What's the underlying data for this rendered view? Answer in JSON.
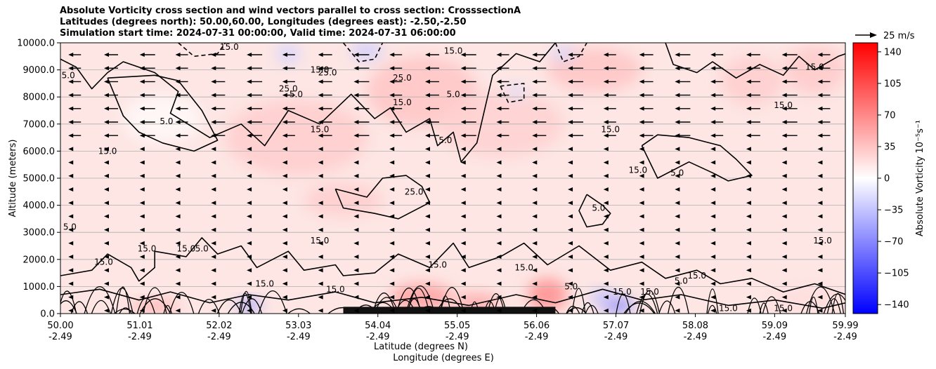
{
  "chart_data": {
    "type": "heatmap",
    "title_lines": [
      "Absolute Vorticity cross section and wind vectors parallel to cross section: CrosssectionA",
      "Latitudes (degrees north): 50.00,60.00, Longitudes (degrees east): -2.50,-2.50",
      "Simulation start time: 2024-07-31 00:00:00, Valid time: 2024-07-31 06:00:00"
    ],
    "ylabel": "Altitude (meters)",
    "xlabel_1": "Latitude (degrees N)",
    "xlabel_2": "Longitude (degrees E)",
    "ylim": [
      0,
      10000
    ],
    "yticks": [
      "0.0",
      "1000.0",
      "2000.0",
      "3000.0",
      "4000.0",
      "5000.0",
      "6000.0",
      "7000.0",
      "8000.0",
      "9000.0",
      "10000.0"
    ],
    "xticks": [
      {
        "lat": "50.00",
        "lon": "-2.49"
      },
      {
        "lat": "51.01",
        "lon": "-2.49"
      },
      {
        "lat": "52.02",
        "lon": "-2.49"
      },
      {
        "lat": "53.03",
        "lon": "-2.49"
      },
      {
        "lat": "54.04",
        "lon": "-2.49"
      },
      {
        "lat": "55.05",
        "lon": "-2.49"
      },
      {
        "lat": "56.06",
        "lon": "-2.49"
      },
      {
        "lat": "57.07",
        "lon": "-2.49"
      },
      {
        "lat": "58.08",
        "lon": "-2.49"
      },
      {
        "lat": "59.09",
        "lon": "-2.49"
      },
      {
        "lat": "59.99",
        "lon": "-2.49"
      }
    ],
    "horizontal_grid": true,
    "colorbar": {
      "label": "Absolute Vorticity 10⁻⁵s⁻¹",
      "ticks": [
        "140",
        "105",
        "70",
        "35",
        "0",
        "−35",
        "−70",
        "−105",
        "−140"
      ],
      "range": [
        -150,
        150
      ],
      "colors": {
        "high": "#ff0000",
        "mid": "#ffffff",
        "low": "#0000ff"
      }
    },
    "quiver_key": {
      "label": "25 m/s"
    },
    "wind_direction": "toward lower latitude (arrows point left)",
    "contour_levels": [
      "5.0",
      "15.0",
      "25.0"
    ],
    "contour_labels": [
      {
        "text": "5.0",
        "lat": 50.1,
        "alt": 8800
      },
      {
        "text": "15.0",
        "lat": 50.6,
        "alt": 6000
      },
      {
        "text": "5.0",
        "lat": 51.35,
        "alt": 7100
      },
      {
        "text": "15.0",
        "lat": 52.15,
        "alt": 9850
      },
      {
        "text": "5.0",
        "lat": 53.0,
        "alt": 8100
      },
      {
        "text": "25.0",
        "lat": 52.9,
        "alt": 8300
      },
      {
        "text": "15.0",
        "lat": 53.3,
        "alt": 6800
      },
      {
        "text": "15.0",
        "lat": 53.3,
        "alt": 9000
      },
      {
        "text": "25.0",
        "lat": 53.4,
        "alt": 8900
      },
      {
        "text": "15.0",
        "lat": 54.35,
        "alt": 7800
      },
      {
        "text": "25.0",
        "lat": 54.35,
        "alt": 8700
      },
      {
        "text": "25.0",
        "lat": 54.5,
        "alt": 4500
      },
      {
        "text": "5.0",
        "lat": 54.9,
        "alt": 6400
      },
      {
        "text": "15.0",
        "lat": 55.0,
        "alt": 9700
      },
      {
        "text": "5.0",
        "lat": 55.0,
        "alt": 8100
      },
      {
        "text": "15.0",
        "lat": 57.0,
        "alt": 6800
      },
      {
        "text": "15.0",
        "lat": 57.35,
        "alt": 5300
      },
      {
        "text": "5.0",
        "lat": 57.85,
        "alt": 5200
      },
      {
        "text": "5.0",
        "lat": 56.85,
        "alt": 3900
      },
      {
        "text": "15.0",
        "lat": 59.2,
        "alt": 7700
      },
      {
        "text": "15.0",
        "lat": 59.6,
        "alt": 9100
      },
      {
        "text": "15.0",
        "lat": 59.7,
        "alt": 2700
      },
      {
        "text": "15.0",
        "lat": 53.3,
        "alt": 2700
      },
      {
        "text": "15.0",
        "lat": 51.1,
        "alt": 2400
      },
      {
        "text": "15.0",
        "lat": 51.6,
        "alt": 2400
      },
      {
        "text": "5.0",
        "lat": 51.8,
        "alt": 2400
      },
      {
        "text": "5.0",
        "lat": 50.12,
        "alt": 3200
      },
      {
        "text": "15.0",
        "lat": 50.55,
        "alt": 1900
      },
      {
        "text": "15.0",
        "lat": 52.6,
        "alt": 1100
      },
      {
        "text": "5.0",
        "lat": 57.9,
        "alt": 1200
      },
      {
        "text": "15.0",
        "lat": 58.1,
        "alt": 1400
      },
      {
        "text": "15.0",
        "lat": 57.15,
        "alt": 800
      },
      {
        "text": "15.0",
        "lat": 57.5,
        "alt": 800
      },
      {
        "text": "15.0",
        "lat": 55.9,
        "alt": 1700
      },
      {
        "text": "5.0",
        "lat": 56.5,
        "alt": 1000
      },
      {
        "text": "15.0",
        "lat": 54.8,
        "alt": 1800
      },
      {
        "text": "15.0",
        "lat": 53.5,
        "alt": 900
      },
      {
        "text": "15.0",
        "lat": 58.5,
        "alt": 200
      },
      {
        "text": "15.0",
        "lat": 59.2,
        "alt": 200
      }
    ],
    "contour_lines": [
      {
        "dash": false,
        "pts": [
          [
            50.0,
            1400
          ],
          [
            50.4,
            1600
          ],
          [
            50.6,
            2200
          ],
          [
            50.9,
            1700
          ],
          [
            51.0,
            1200
          ],
          [
            51.2,
            1700
          ],
          [
            51.2,
            2300
          ],
          [
            51.6,
            2100
          ],
          [
            51.8,
            2800
          ],
          [
            52.0,
            2200
          ],
          [
            52.3,
            2500
          ],
          [
            52.5,
            1700
          ],
          [
            52.9,
            2300
          ],
          [
            53.1,
            1600
          ],
          [
            53.5,
            1800
          ],
          [
            53.6,
            1400
          ],
          [
            54.0,
            1500
          ],
          [
            54.3,
            2200
          ],
          [
            54.7,
            1700
          ],
          [
            55.0,
            2600
          ],
          [
            55.2,
            1700
          ],
          [
            55.6,
            2100
          ],
          [
            55.9,
            2600
          ],
          [
            56.2,
            1800
          ],
          [
            56.6,
            2500
          ],
          [
            57.0,
            1600
          ],
          [
            57.4,
            1900
          ],
          [
            57.7,
            1300
          ],
          [
            58.1,
            1600
          ],
          [
            58.4,
            1100
          ],
          [
            58.8,
            1300
          ],
          [
            59.2,
            800
          ],
          [
            59.6,
            1100
          ],
          [
            60.0,
            700
          ]
        ]
      },
      {
        "dash": false,
        "pts": [
          [
            50.0,
            700
          ],
          [
            50.5,
            900
          ],
          [
            51.0,
            500
          ],
          [
            51.4,
            800
          ],
          [
            51.9,
            400
          ],
          [
            52.4,
            700
          ],
          [
            52.9,
            500
          ],
          [
            53.5,
            800
          ],
          [
            54.0,
            400
          ],
          [
            54.6,
            600
          ],
          [
            55.2,
            300
          ],
          [
            55.8,
            700
          ],
          [
            56.3,
            400
          ],
          [
            56.9,
            900
          ],
          [
            57.4,
            500
          ],
          [
            57.9,
            700
          ],
          [
            58.5,
            300
          ],
          [
            59.1,
            500
          ],
          [
            59.7,
            200
          ],
          [
            60.0,
            400
          ]
        ]
      },
      {
        "dash": false,
        "pts": [
          [
            50.0,
            9400
          ],
          [
            50.2,
            9100
          ],
          [
            50.4,
            8300
          ],
          [
            50.6,
            8900
          ],
          [
            50.8,
            9300
          ],
          [
            51.2,
            8900
          ],
          [
            51.5,
            8200
          ],
          [
            51.4,
            7400
          ],
          [
            51.9,
            6500
          ],
          [
            52.3,
            7000
          ],
          [
            52.6,
            6200
          ],
          [
            52.9,
            7500
          ],
          [
            53.3,
            7000
          ],
          [
            53.7,
            8100
          ],
          [
            54.0,
            7200
          ],
          [
            54.2,
            7600
          ],
          [
            54.4,
            6700
          ],
          [
            54.7,
            7200
          ],
          [
            54.8,
            6200
          ],
          [
            55.0,
            6700
          ],
          [
            55.1,
            5600
          ],
          [
            55.3,
            6300
          ],
          [
            55.5,
            8800
          ],
          [
            55.8,
            9600
          ],
          [
            56.1,
            9300
          ],
          [
            56.3,
            10000
          ]
        ]
      },
      {
        "dash": false,
        "pts": [
          [
            50.6,
            8700
          ],
          [
            50.8,
            7300
          ],
          [
            51.0,
            6700
          ],
          [
            51.3,
            6300
          ],
          [
            51.7,
            6000
          ],
          [
            52.0,
            6400
          ],
          [
            51.8,
            7500
          ],
          [
            51.5,
            8600
          ],
          [
            51.2,
            8800
          ],
          [
            50.6,
            8700
          ]
        ]
      },
      {
        "dash": false,
        "pts": [
          [
            53.5,
            4600
          ],
          [
            53.9,
            4300
          ],
          [
            54.1,
            5000
          ],
          [
            54.4,
            5100
          ],
          [
            54.6,
            4700
          ],
          [
            54.7,
            4100
          ],
          [
            54.3,
            3500
          ],
          [
            54.0,
            3700
          ],
          [
            53.6,
            3900
          ],
          [
            53.5,
            4600
          ]
        ]
      },
      {
        "dash": false,
        "pts": [
          [
            56.7,
            4400
          ],
          [
            56.9,
            4000
          ],
          [
            57.0,
            3700
          ],
          [
            56.9,
            3300
          ],
          [
            56.7,
            3200
          ],
          [
            56.6,
            3800
          ],
          [
            56.7,
            4400
          ]
        ]
      },
      {
        "dash": false,
        "pts": [
          [
            57.4,
            6200
          ],
          [
            57.6,
            5000
          ],
          [
            58.0,
            5600
          ],
          [
            58.3,
            5200
          ],
          [
            58.5,
            4900
          ],
          [
            58.8,
            5100
          ],
          [
            58.6,
            5700
          ],
          [
            58.4,
            6200
          ],
          [
            58.0,
            6500
          ],
          [
            57.6,
            6600
          ],
          [
            57.4,
            6200
          ]
        ]
      },
      {
        "dash": false,
        "pts": [
          [
            57.7,
            10000
          ],
          [
            57.8,
            9200
          ],
          [
            58.1,
            8900
          ],
          [
            58.3,
            9300
          ],
          [
            58.6,
            8700
          ],
          [
            58.9,
            9200
          ],
          [
            59.2,
            8800
          ],
          [
            59.4,
            9500
          ],
          [
            59.6,
            9000
          ],
          [
            59.9,
            9500
          ],
          [
            60.0,
            9600
          ]
        ]
      },
      {
        "dash": true,
        "pts": [
          [
            51.5,
            10000
          ],
          [
            51.7,
            9500
          ],
          [
            52.0,
            9600
          ],
          [
            52.1,
            10000
          ]
        ]
      },
      {
        "dash": true,
        "pts": [
          [
            53.6,
            10000
          ],
          [
            53.8,
            9300
          ],
          [
            54.0,
            9400
          ],
          [
            54.1,
            10000
          ]
        ]
      },
      {
        "dash": true,
        "pts": [
          [
            56.3,
            10000
          ],
          [
            56.4,
            9300
          ],
          [
            56.6,
            9500
          ],
          [
            56.7,
            10000
          ]
        ]
      },
      {
        "dash": true,
        "pts": [
          [
            55.6,
            8400
          ],
          [
            55.7,
            7800
          ],
          [
            55.9,
            7900
          ],
          [
            55.9,
            8500
          ],
          [
            55.6,
            8400
          ]
        ]
      }
    ],
    "field_patches": [
      {
        "lat": 53.0,
        "alt": 6500,
        "value": 30,
        "r_lat": 0.9,
        "r_alt": 1400
      },
      {
        "lat": 54.6,
        "alt": 8200,
        "value": 35,
        "r_lat": 0.7,
        "r_alt": 1300
      },
      {
        "lat": 55.6,
        "alt": 7000,
        "value": 28,
        "r_lat": 0.8,
        "r_alt": 1200
      },
      {
        "lat": 53.6,
        "alt": 4200,
        "value": 30,
        "r_lat": 0.5,
        "r_alt": 600
      },
      {
        "lat": 56.8,
        "alt": 9000,
        "value": 35,
        "r_lat": 0.6,
        "r_alt": 800
      },
      {
        "lat": 59.6,
        "alt": 9000,
        "value": 32,
        "r_lat": 0.4,
        "r_alt": 900
      },
      {
        "lat": 58.8,
        "alt": 8600,
        "value": 30,
        "r_lat": 0.4,
        "r_alt": 900
      },
      {
        "lat": 51.3,
        "alt": 7200,
        "value": 3,
        "r_lat": 0.5,
        "r_alt": 900
      },
      {
        "lat": 52.9,
        "alt": 9600,
        "value": -25,
        "r_lat": 0.15,
        "r_alt": 400
      },
      {
        "lat": 53.9,
        "alt": 9700,
        "value": -30,
        "r_lat": 0.2,
        "r_alt": 350
      },
      {
        "lat": 56.4,
        "alt": 9600,
        "value": -25,
        "r_lat": 0.15,
        "r_alt": 300
      },
      {
        "lat": 55.8,
        "alt": 8200,
        "value": -20,
        "r_lat": 0.12,
        "r_alt": 300
      },
      {
        "lat": 54.6,
        "alt": 600,
        "value": 60,
        "r_lat": 0.4,
        "r_alt": 500
      },
      {
        "lat": 56.2,
        "alt": 700,
        "value": 70,
        "r_lat": 0.25,
        "r_alt": 600
      },
      {
        "lat": 57.1,
        "alt": 300,
        "value": -70,
        "r_lat": 0.2,
        "r_alt": 300
      },
      {
        "lat": 56.9,
        "alt": 600,
        "value": -40,
        "r_lat": 0.15,
        "r_alt": 300
      },
      {
        "lat": 52.4,
        "alt": 300,
        "value": -60,
        "r_lat": 0.15,
        "r_alt": 250
      },
      {
        "lat": 51.2,
        "alt": 250,
        "value": 50,
        "r_lat": 0.3,
        "r_alt": 250
      },
      {
        "lat": 55.3,
        "alt": 400,
        "value": 55,
        "r_lat": 0.3,
        "r_alt": 350
      },
      {
        "lat": 59.5,
        "alt": 500,
        "value": 20,
        "r_lat": 0.5,
        "r_alt": 500
      }
    ]
  }
}
